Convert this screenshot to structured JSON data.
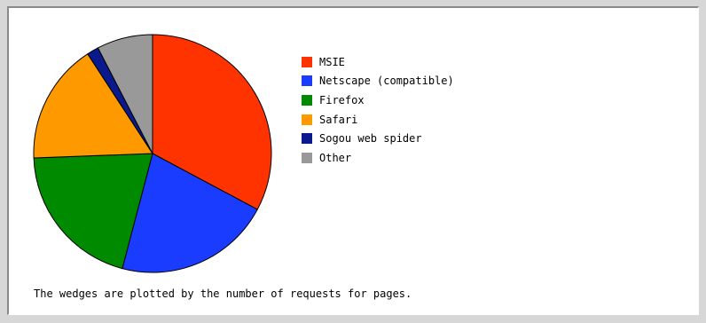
{
  "chart_data": {
    "type": "pie",
    "title": "",
    "slices": [
      {
        "label": "MSIE",
        "value": 32.8,
        "color": "#ff3300"
      },
      {
        "label": "Netscape (compatible)",
        "value": 21.3,
        "color": "#1a3cff"
      },
      {
        "label": "Firefox",
        "value": 20.3,
        "color": "#008a00"
      },
      {
        "label": "Safari",
        "value": 16.4,
        "color": "#ff9900"
      },
      {
        "label": "Sogou web spider",
        "value": 1.6,
        "color": "#0a1a8c"
      },
      {
        "label": "Other",
        "value": 7.6,
        "color": "#999999"
      }
    ],
    "legend_position": "right"
  },
  "footnote": "The wedges are plotted by the number of requests for pages."
}
